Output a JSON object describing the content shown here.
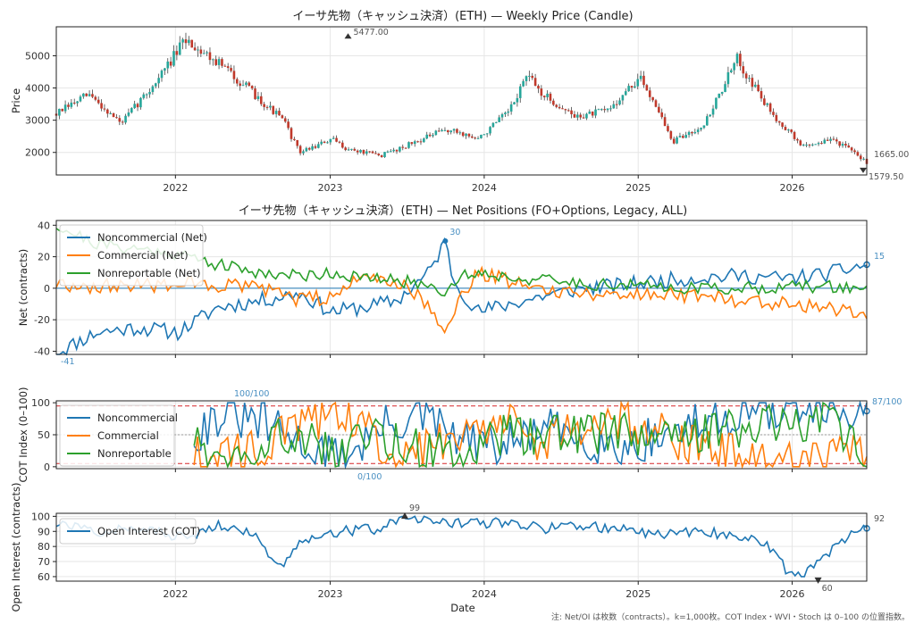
{
  "footnote": "注: Net/OI は枚数（contracts）。k=1,000枚。COT Index・WVI・Stoch は 0–100 の位置指数。",
  "chart_data": [
    {
      "id": "price",
      "type": "candlestick",
      "title": "イーサ先物（キャッシュ決済）(ETH) — Weekly Price (Candle)",
      "ylabel": "Price",
      "ylim": [
        1300,
        5900
      ],
      "yticks": [
        2000,
        3000,
        4000,
        5000
      ],
      "x_ticks": [
        "2022",
        "2023",
        "2024",
        "2025",
        "2026"
      ],
      "annotations": {
        "high": "5477.00",
        "last": "1665.00",
        "low": "1579.50"
      },
      "path_t": [
        0,
        0.04,
        0.08,
        0.12,
        0.16,
        0.2,
        0.24,
        0.28,
        0.3,
        0.34,
        0.36,
        0.4,
        0.44,
        0.48,
        0.5,
        0.52,
        0.56,
        0.58,
        0.6,
        0.64,
        0.68,
        0.72,
        0.74,
        0.76,
        0.8,
        0.84,
        0.86,
        0.88,
        0.92,
        0.96,
        1.0
      ],
      "path_v": [
        3200,
        3800,
        2900,
        4100,
        5500,
        4800,
        3900,
        3000,
        2000,
        2400,
        2100,
        1900,
        2300,
        2700,
        2600,
        2400,
        3300,
        4400,
        3800,
        3100,
        3300,
        4300,
        3500,
        2300,
        2900,
        4900,
        4100,
        3300,
        2200,
        2400,
        1700
      ],
      "colors": {
        "up": "#26a69a",
        "down": "#c0392b",
        "wick": "#444444"
      }
    },
    {
      "id": "net",
      "type": "line",
      "title": "イーサ先物（キャッシュ決済）(ETH) — Net Positions (FO+Options, Legacy, ALL)",
      "ylabel": "Net (contracts)",
      "ylim": [
        -42,
        43
      ],
      "yticks": [
        -40,
        -20,
        0,
        20,
        40
      ],
      "annotations": {
        "max": "30",
        "min": "-41",
        "last": "15"
      },
      "series": [
        {
          "name": "Noncommercial (Net)",
          "color": "#1f77b4",
          "path_t": [
            0,
            0.05,
            0.1,
            0.15,
            0.2,
            0.25,
            0.3,
            0.34,
            0.38,
            0.42,
            0.46,
            0.48,
            0.49,
            0.52,
            0.56,
            0.6,
            0.65,
            0.7,
            0.75,
            0.8,
            0.85,
            0.9,
            0.95,
            1.0
          ],
          "path_v": [
            -41,
            -28,
            -25,
            -28,
            -12,
            -8,
            -3,
            -15,
            -12,
            -8,
            10,
            30,
            5,
            -15,
            -10,
            -5,
            0,
            2,
            5,
            7,
            8,
            6,
            9,
            15
          ]
        },
        {
          "name": "Commercial (Net)",
          "color": "#ff7f0e",
          "path_t": [
            0,
            0.05,
            0.1,
            0.15,
            0.2,
            0.25,
            0.3,
            0.34,
            0.38,
            0.42,
            0.46,
            0.48,
            0.5,
            0.52,
            0.56,
            0.6,
            0.65,
            0.7,
            0.75,
            0.8,
            0.85,
            0.9,
            0.95,
            1.0
          ],
          "path_v": [
            3,
            1,
            2,
            3,
            2,
            0,
            -8,
            -5,
            8,
            5,
            -10,
            -28,
            -5,
            10,
            5,
            0,
            -3,
            -4,
            -3,
            -5,
            -8,
            -9,
            -12,
            -15
          ]
        },
        {
          "name": "Nonreportable (Net)",
          "color": "#2ca02c",
          "path_t": [
            0,
            0.05,
            0.1,
            0.15,
            0.2,
            0.25,
            0.3,
            0.34,
            0.38,
            0.42,
            0.46,
            0.48,
            0.5,
            0.52,
            0.56,
            0.6,
            0.65,
            0.7,
            0.75,
            0.8,
            0.85,
            0.9,
            0.95,
            1.0
          ],
          "path_v": [
            40,
            28,
            25,
            22,
            15,
            10,
            8,
            10,
            6,
            5,
            2,
            -2,
            8,
            10,
            7,
            5,
            3,
            2,
            1,
            0,
            0,
            1,
            1,
            0
          ]
        }
      ]
    },
    {
      "id": "cot",
      "type": "line",
      "ylabel": "COT Index (0–100)",
      "ylim": [
        -3,
        103
      ],
      "yticks": [
        0,
        50,
        100
      ],
      "ref_lines": [
        5,
        50,
        95
      ],
      "annotations": {
        "max": "100/100",
        "min": "0/100",
        "last": "87/100"
      },
      "series": [
        {
          "name": "Noncommercial",
          "color": "#1f77b4",
          "path_t": [
            0.17,
            0.2,
            0.25,
            0.3,
            0.35,
            0.4,
            0.45,
            0.5,
            0.55,
            0.6,
            0.65,
            0.7,
            0.75,
            0.8,
            0.85,
            0.9,
            0.95,
            1.0
          ],
          "path_v": [
            50,
            80,
            70,
            40,
            10,
            60,
            80,
            40,
            30,
            60,
            45,
            30,
            50,
            70,
            90,
            95,
            85,
            87
          ]
        },
        {
          "name": "Commercial",
          "color": "#ff7f0e",
          "path_t": [
            0.17,
            0.2,
            0.25,
            0.3,
            0.35,
            0.4,
            0.45,
            0.5,
            0.55,
            0.6,
            0.65,
            0.7,
            0.75,
            0.8,
            0.85,
            0.9,
            0.95,
            1.0
          ],
          "path_v": [
            20,
            10,
            30,
            60,
            90,
            40,
            20,
            60,
            70,
            40,
            55,
            70,
            50,
            30,
            10,
            5,
            15,
            13
          ]
        },
        {
          "name": "Nonreportable",
          "color": "#2ca02c",
          "path_t": [
            0.17,
            0.2,
            0.25,
            0.3,
            0.35,
            0.4,
            0.45,
            0.5,
            0.55,
            0.6,
            0.65,
            0.7,
            0.75,
            0.8,
            0.85,
            0.9,
            0.95,
            1.0
          ],
          "path_v": [
            50,
            20,
            40,
            50,
            30,
            50,
            30,
            20,
            50,
            45,
            50,
            55,
            40,
            50,
            60,
            70,
            80,
            25
          ]
        }
      ]
    },
    {
      "id": "oi",
      "type": "line",
      "ylabel": "Open Interest (contracts)",
      "xlabel": "Date",
      "ylim": [
        57,
        102
      ],
      "yticks": [
        60,
        70,
        80,
        90,
        100
      ],
      "annotations": {
        "max": "99",
        "min": "60",
        "last": "92"
      },
      "x_ticks": [
        "2022",
        "2023",
        "2024",
        "2025",
        "2026"
      ],
      "series": [
        {
          "name": "Open Interest (COT)",
          "color": "#1f77b4",
          "path_t": [
            0,
            0.05,
            0.1,
            0.14,
            0.16,
            0.2,
            0.24,
            0.26,
            0.28,
            0.3,
            0.35,
            0.4,
            0.43,
            0.5,
            0.55,
            0.6,
            0.65,
            0.7,
            0.75,
            0.8,
            0.85,
            0.88,
            0.9,
            0.92,
            0.94,
            0.97,
            1.0
          ],
          "path_v": [
            95,
            90,
            92,
            88,
            85,
            95,
            90,
            75,
            68,
            85,
            90,
            92,
            99,
            95,
            96,
            92,
            94,
            91,
            88,
            90,
            86,
            80,
            65,
            60,
            70,
            85,
            92
          ]
        }
      ]
    }
  ]
}
